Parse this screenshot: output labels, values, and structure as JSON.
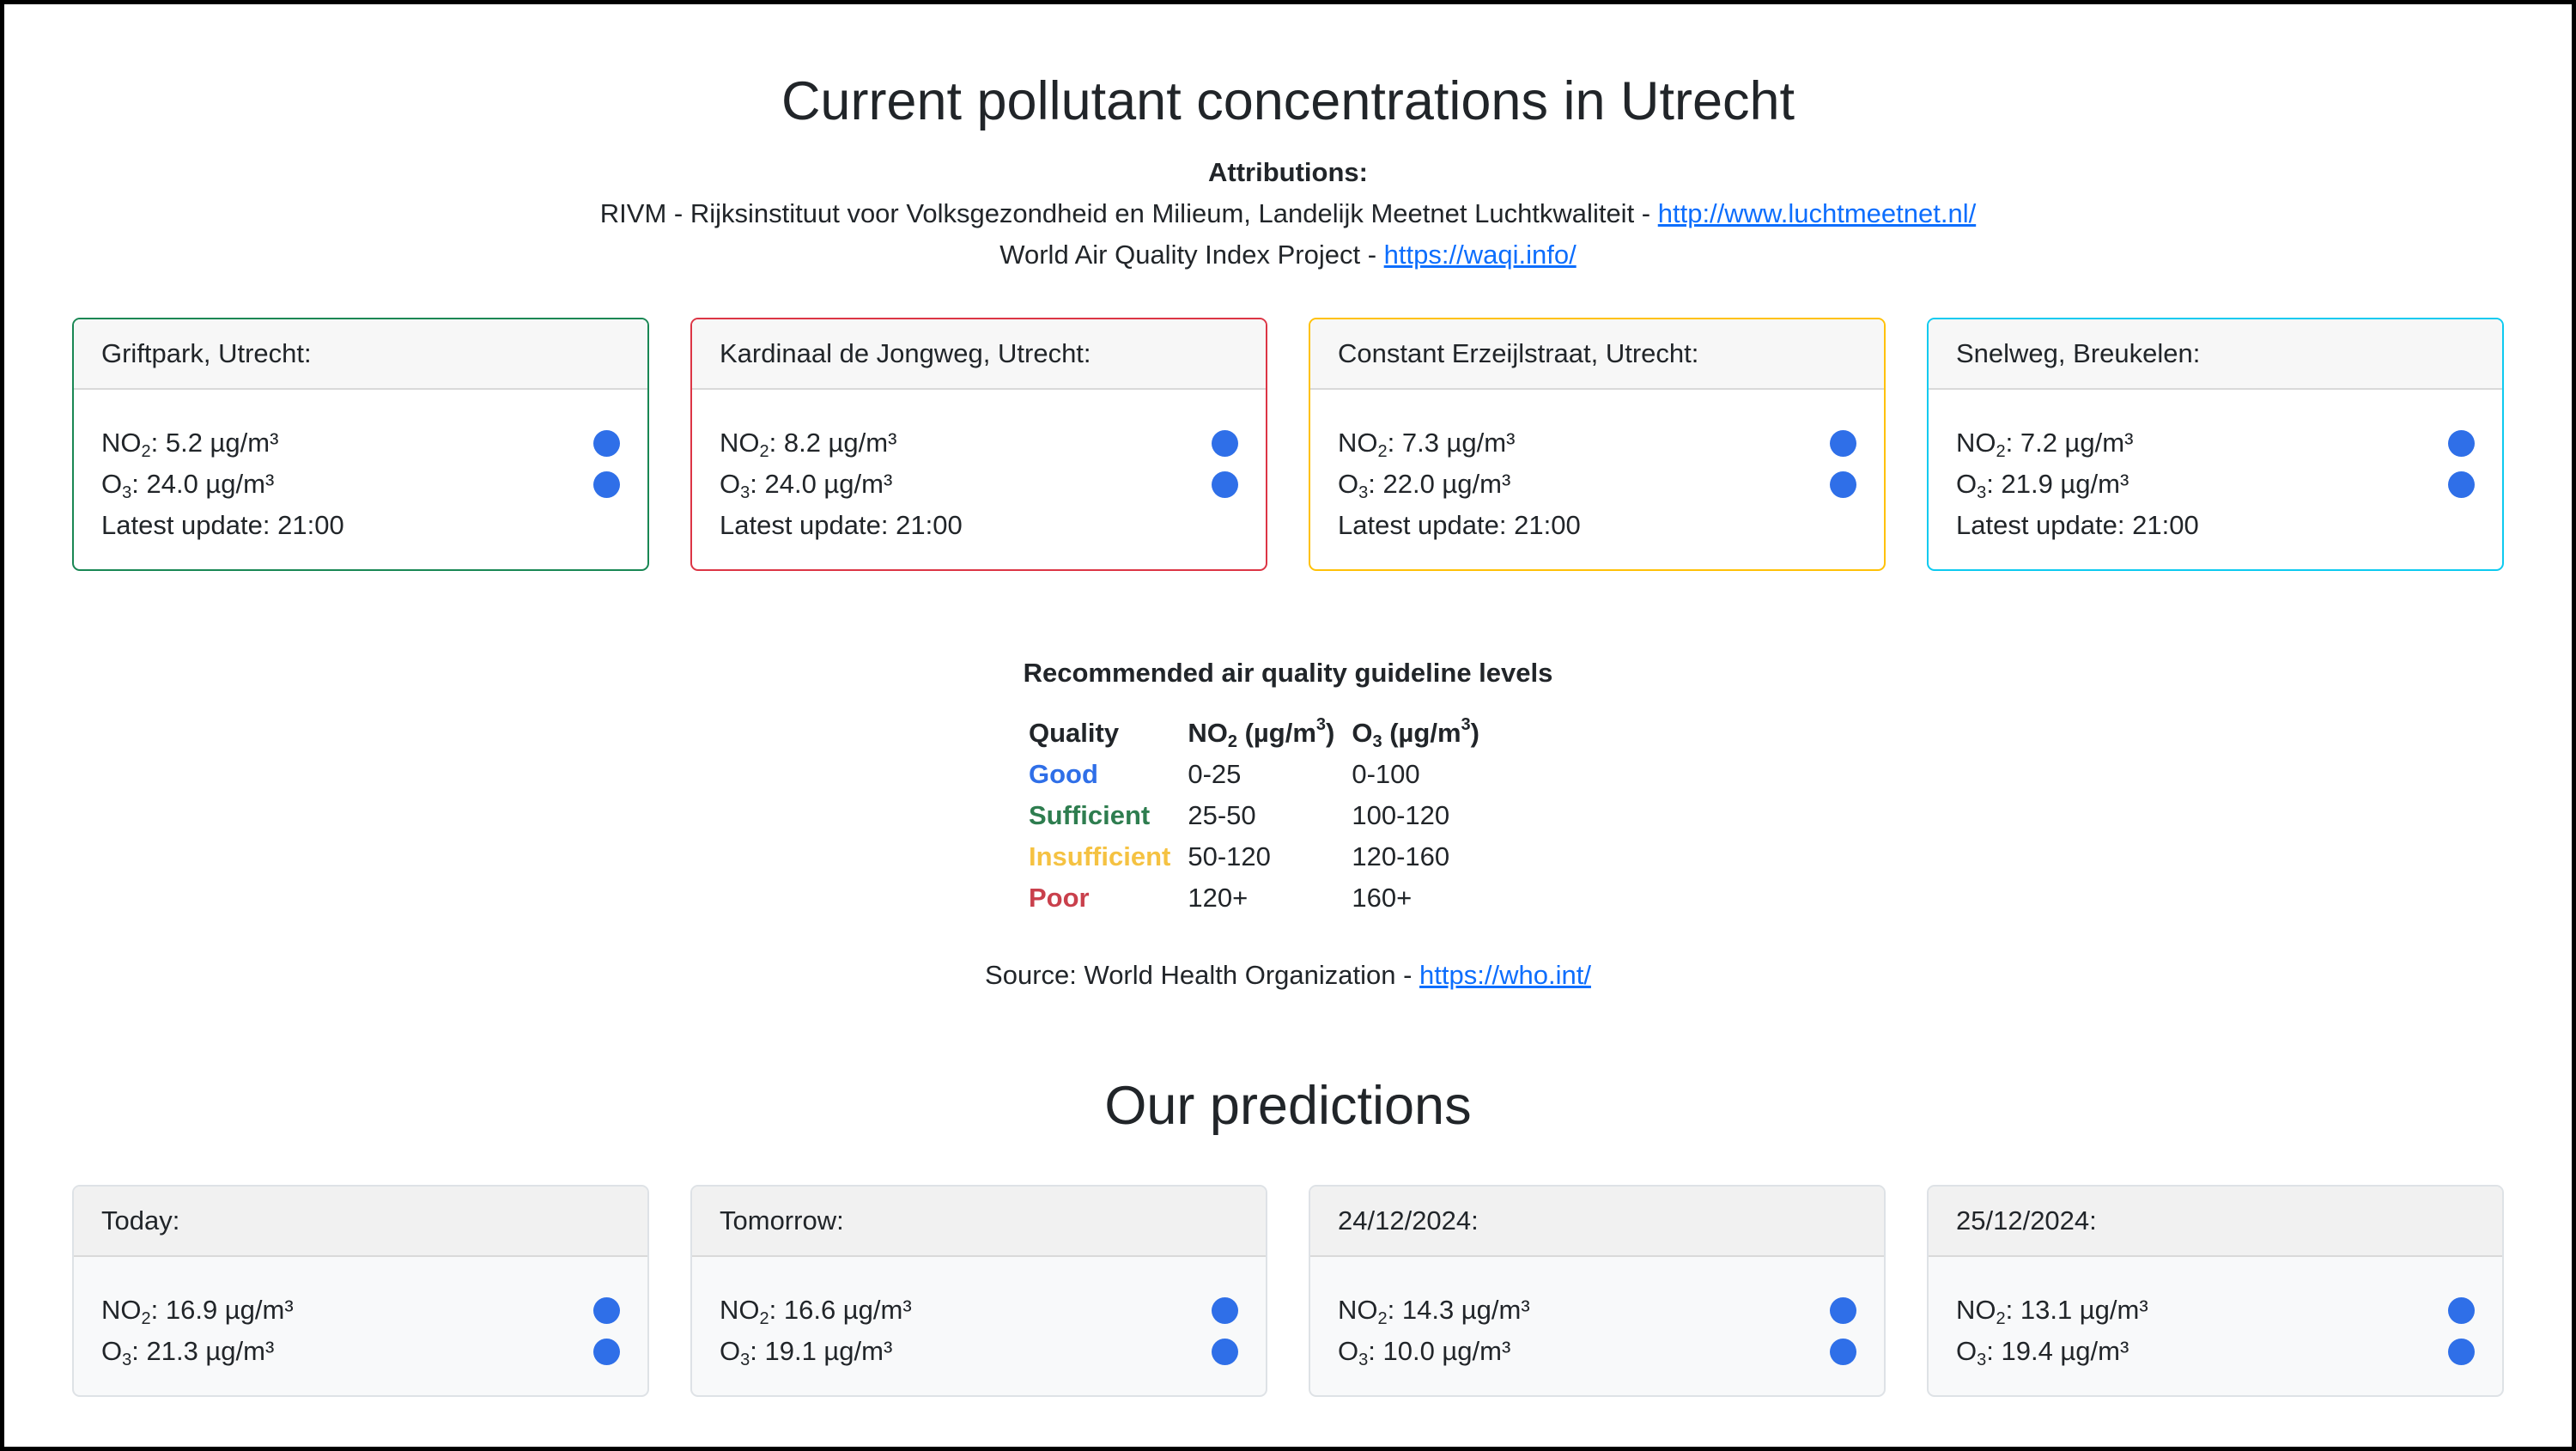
{
  "page": {
    "title": "Current pollutant concentrations in Utrecht",
    "attributions_heading": "Attributions:",
    "attribution_1_text": "RIVM - Rijksinstituut voor Volksgezondheid en Milieum, Landelijk Meetnet Luchtkwaliteit - ",
    "attribution_1_link": "http://www.luchtmeetnet.nl/",
    "attribution_2_text": "World Air Quality Index Project - ",
    "attribution_2_link": "https://waqi.info/"
  },
  "stations": [
    {
      "name": "Griftpark, Utrecht:",
      "no2_label": "NO",
      "no2_value": ": 5.2 µg/m³",
      "o3_label": "O",
      "o3_value": ": 24.0 µg/m³",
      "update": "Latest update: 21:00",
      "border": "#198754"
    },
    {
      "name": "Kardinaal de Jongweg, Utrecht:",
      "no2_label": "NO",
      "no2_value": ": 8.2 µg/m³",
      "o3_label": "O",
      "o3_value": ": 24.0 µg/m³",
      "update": "Latest update: 21:00",
      "border": "#dc3545"
    },
    {
      "name": "Constant Erzeijlstraat, Utrecht:",
      "no2_label": "NO",
      "no2_value": ": 7.3 µg/m³",
      "o3_label": "O",
      "o3_value": ": 22.0 µg/m³",
      "update": "Latest update: 21:00",
      "border": "#ffc107"
    },
    {
      "name": "Snelweg, Breukelen:",
      "no2_label": "NO",
      "no2_value": ": 7.2 µg/m³",
      "o3_label": "O",
      "o3_value": ": 21.9 µg/m³",
      "update": "Latest update: 21:00",
      "border": "#0dcaf0"
    }
  ],
  "guideline": {
    "title": "Recommended air quality guideline levels",
    "headers": {
      "quality": "Quality",
      "no2_a": "NO",
      "no2_sub": "2",
      "no2_b": " (µg/m",
      "no2_sup": "3",
      "no2_c": ")",
      "o3_a": "O",
      "o3_sub": "3",
      "o3_b": " (µg/m",
      "o3_sup": "3",
      "o3_c": ")"
    },
    "rows": [
      {
        "quality": "Good",
        "no2": "0-25",
        "o3": "0-100",
        "color": "#2f6fe8"
      },
      {
        "quality": "Sufficient",
        "no2": "25-50",
        "o3": "100-120",
        "color": "#2e7d4f"
      },
      {
        "quality": "Insufficient",
        "no2": "50-120",
        "o3": "120-160",
        "color": "#f5c242"
      },
      {
        "quality": "Poor",
        "no2": "120+",
        "o3": "160+",
        "color": "#c9404c"
      }
    ],
    "source_text": "Source: World Health Organization - ",
    "source_link": "https://who.int/"
  },
  "predictions": {
    "title": "Our predictions",
    "items": [
      {
        "label": "Today:",
        "no2_value": ": 16.9 µg/m³",
        "o3_value": ": 21.3 µg/m³"
      },
      {
        "label": "Tomorrow:",
        "no2_value": ": 16.6 µg/m³",
        "o3_value": ": 19.1 µg/m³"
      },
      {
        "label": "24/12/2024:",
        "no2_value": ": 14.3 µg/m³",
        "o3_value": ": 10.0 µg/m³"
      },
      {
        "label": "25/12/2024:",
        "no2_value": ": 13.1 µg/m³",
        "o3_value": ": 19.4 µg/m³"
      }
    ]
  },
  "chem": {
    "no": "NO",
    "o": "O",
    "two": "2",
    "three": "3"
  },
  "status_dot_color": "#2f6fe8"
}
